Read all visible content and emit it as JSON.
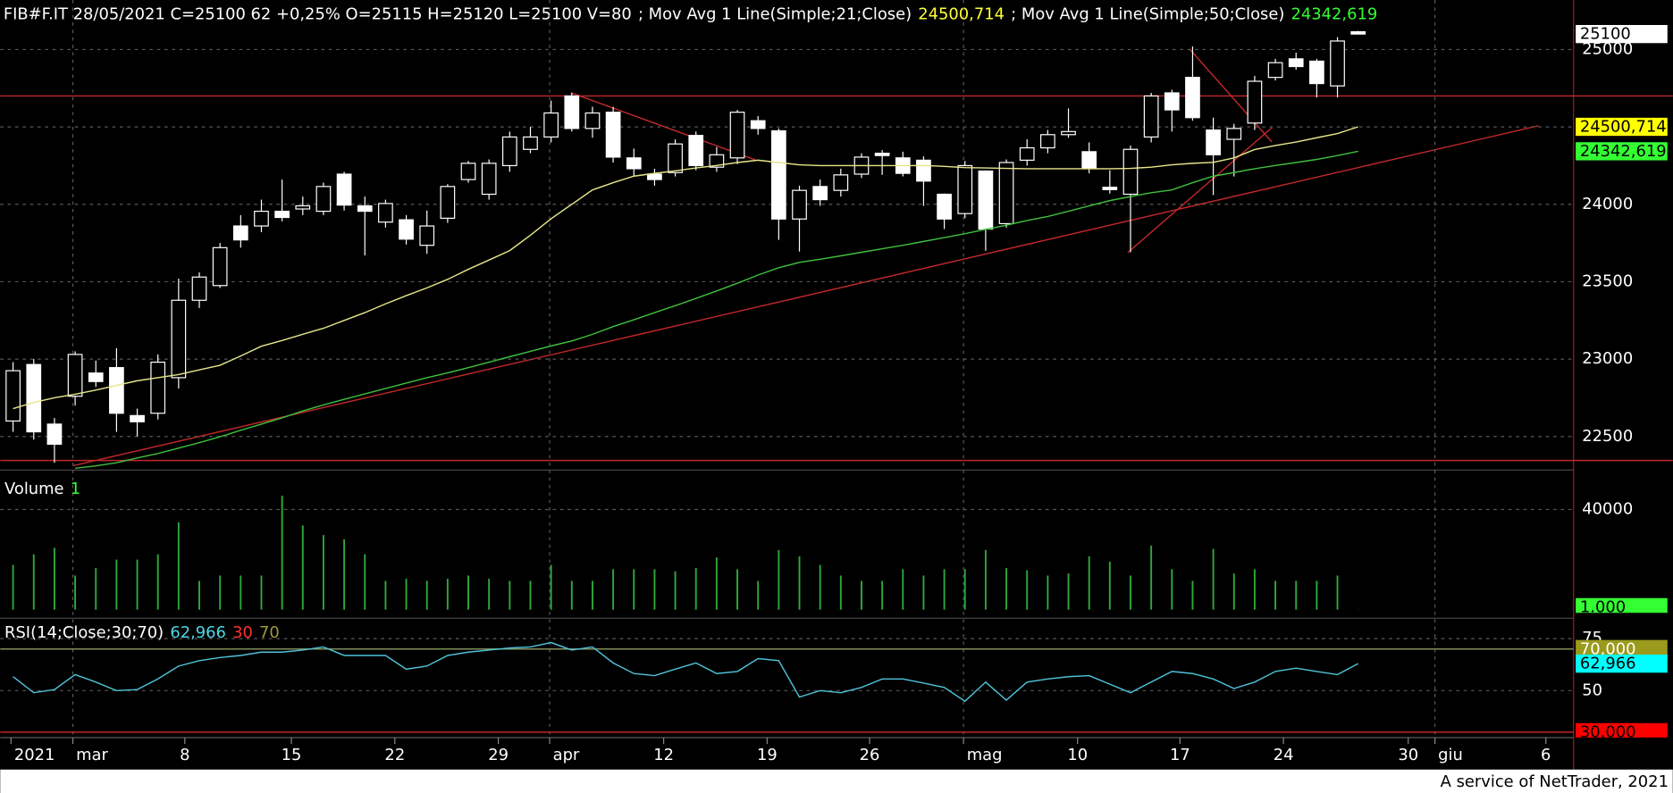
{
  "header": [
    {
      "text": "FIB#F.IT 28/05/2021 C=25100 62 +0,25% O=25115 H=25120 L=25100 V=80",
      "color": "#ffffff"
    },
    {
      "text": "; Mov Avg 1 Line(Simple;21;Close)",
      "color": "#ffffff"
    },
    {
      "text": "24500,714",
      "color": "#ffff33"
    },
    {
      "text": "; Mov Avg 1 Line(Simple;50;Close)",
      "color": "#ffffff"
    },
    {
      "text": "24342,619",
      "color": "#33ff33"
    }
  ],
  "footer": "A service of NetTrader, 2021",
  "chart_data": [
    {
      "type": "candlestick",
      "up_fill": "#000000",
      "down_fill": "#ffffff",
      "candle_stroke": "#ffffff",
      "grid": true,
      "open": [
        22600,
        22965,
        22580,
        22760,
        22910,
        22945,
        22635,
        22650,
        22880,
        23380,
        23475,
        23860,
        23860,
        23955,
        23970,
        23955,
        24195,
        23990,
        23885,
        23900,
        23735,
        23910,
        24160,
        24065,
        24250,
        24355,
        24435,
        24700,
        24490,
        24595,
        24300,
        24195,
        24205,
        24445,
        24240,
        24300,
        24540,
        24475,
        23905,
        24115,
        24090,
        24195,
        24330,
        24300,
        24285,
        24065,
        23940,
        24215,
        23875,
        24285,
        24365,
        24450,
        24340,
        24110,
        24065,
        24435,
        24720,
        24820,
        24480,
        24420,
        24525,
        24820,
        24940,
        24925,
        24765,
        25115
      ],
      "high": [
        22980,
        23000,
        22620,
        23050,
        22990,
        23070,
        22680,
        23030,
        23520,
        23560,
        23750,
        23930,
        24030,
        24160,
        24050,
        24140,
        24210,
        24050,
        24030,
        23930,
        23960,
        24130,
        24280,
        24290,
        24470,
        24500,
        24670,
        24720,
        24630,
        24630,
        24360,
        24230,
        24420,
        24470,
        24370,
        24610,
        24570,
        24490,
        24120,
        24160,
        24230,
        24330,
        24350,
        24340,
        24310,
        24070,
        24280,
        24220,
        24290,
        24420,
        24480,
        24620,
        24400,
        24220,
        24380,
        24720,
        24740,
        25020,
        24560,
        24520,
        24830,
        24940,
        24980,
        24940,
        25080,
        25120
      ],
      "low": [
        22530,
        22480,
        22330,
        22700,
        22820,
        22530,
        22500,
        22610,
        22810,
        23330,
        23460,
        23720,
        23820,
        23890,
        23930,
        23930,
        23960,
        23670,
        23850,
        23740,
        23680,
        23880,
        24140,
        24030,
        24210,
        24330,
        24400,
        24470,
        24430,
        24270,
        24180,
        24120,
        24180,
        24220,
        24210,
        24260,
        24450,
        23770,
        23695,
        23990,
        24050,
        24170,
        24190,
        24180,
        23990,
        23840,
        23910,
        23700,
        23850,
        24250,
        24330,
        24430,
        24200,
        24070,
        23690,
        24400,
        24470,
        24540,
        24060,
        24180,
        24480,
        24800,
        24870,
        24690,
        24690,
        25100
      ],
      "close": [
        22925,
        22530,
        22450,
        23030,
        22855,
        22650,
        22595,
        22980,
        23380,
        23530,
        23720,
        23770,
        23955,
        23915,
        23990,
        24115,
        23995,
        23955,
        24005,
        23775,
        23860,
        24115,
        24265,
        24265,
        24435,
        24435,
        24590,
        24490,
        24590,
        24305,
        24230,
        24160,
        24390,
        24250,
        24320,
        24595,
        24490,
        23905,
        24090,
        24030,
        24190,
        24305,
        24315,
        24200,
        24150,
        23905,
        24250,
        23840,
        24270,
        24365,
        24450,
        24470,
        24230,
        24095,
        24355,
        24700,
        24610,
        24560,
        24320,
        24490,
        24795,
        24915,
        24890,
        24780,
        25055,
        25100
      ],
      "series": [
        {
          "color": "#e6e68a",
          "values": [
            22680,
            22720,
            22750,
            22773,
            22800,
            22830,
            22860,
            22880,
            22900,
            22930,
            22960,
            23020,
            23083,
            23120,
            23160,
            23199,
            23250,
            23300,
            23357,
            23410,
            23460,
            23515,
            23580,
            23640,
            23701,
            23800,
            23907,
            24000,
            24093,
            24140,
            24182,
            24200,
            24216,
            24235,
            24251,
            24270,
            24285,
            24270,
            24255,
            24250,
            24250,
            24250,
            24250,
            24250,
            24251,
            24245,
            24237,
            24235,
            24232,
            24230,
            24230,
            24230,
            24230,
            24230,
            24232,
            24240,
            24255,
            24265,
            24271,
            24300,
            24354,
            24380,
            24402,
            24430,
            24457,
            24500.714
          ]
        },
        {
          "color": "#3fbf3f",
          "values": [
            null,
            null,
            null,
            22295,
            22310,
            22330,
            22361,
            22390,
            22425,
            22460,
            22498,
            22540,
            22580,
            22620,
            22665,
            22704,
            22740,
            22775,
            22810,
            22845,
            22880,
            22911,
            22945,
            22980,
            23015,
            23050,
            23085,
            23117,
            23160,
            23210,
            23254,
            23300,
            23345,
            23392,
            23440,
            23490,
            23543,
            23590,
            23625,
            23645,
            23667,
            23690,
            23713,
            23735,
            23760,
            23785,
            23810,
            23838,
            23865,
            23895,
            23921,
            23955,
            23990,
            24024,
            24050,
            24075,
            24093,
            24140,
            24182,
            24205,
            24230,
            24251,
            24270,
            24290,
            24315,
            24342.619
          ]
        }
      ],
      "ylim": [
        22290,
        25320
      ],
      "yticks": [
        22500,
        23000,
        23500,
        24000,
        24500,
        25000
      ],
      "hlines": [
        24700,
        22345
      ],
      "hline_color": "#c0282a",
      "xlim": [
        -0.62,
        75.41
      ],
      "xticks": [
        {
          "value": -0.1,
          "label": "2021"
        },
        {
          "value": 2.89,
          "label": "mar"
        },
        {
          "value": 8.3,
          "label": "8"
        },
        {
          "value": 13.45,
          "label": "15"
        },
        {
          "value": 18.45,
          "label": "22"
        },
        {
          "value": 23.45,
          "label": "29"
        },
        {
          "value": 25.93,
          "label": "apr"
        },
        {
          "value": 31.44,
          "label": "12"
        },
        {
          "value": 36.44,
          "label": "19"
        },
        {
          "value": 41.39,
          "label": "26"
        },
        {
          "value": 45.93,
          "label": "mag"
        },
        {
          "value": 51.44,
          "label": "10"
        },
        {
          "value": 56.39,
          "label": "17"
        },
        {
          "value": 61.39,
          "label": "24"
        },
        {
          "value": 67.42,
          "label": "30"
        },
        {
          "value": 68.71,
          "label": "giu"
        },
        {
          "value": 74.07,
          "label": "6"
        }
      ],
      "badges": [
        {
          "value": 25100,
          "label": "25100",
          "bg": "#ffffff",
          "fg": "#000000"
        },
        {
          "value": 24500.714,
          "label": "24500,714",
          "bg": "#ffff00",
          "fg": "#000000"
        },
        {
          "value": 24342.619,
          "label": "24342,619",
          "bg": "#33ff33",
          "fg": "#000000"
        }
      ]
    },
    {
      "type": "bar",
      "color": "#2fa83a",
      "legend": [
        {
          "text": "Volume",
          "color": "#ffffff"
        },
        {
          "text": "1",
          "color": "#33ff33"
        }
      ],
      "values": [
        17870,
        22130,
        24680,
        13620,
        16600,
        20000,
        20000,
        22130,
        34890,
        11490,
        13620,
        13620,
        13620,
        45530,
        33610,
        29790,
        28080,
        22130,
        11490,
        12340,
        11490,
        12340,
        13620,
        12340,
        11490,
        11490,
        17870,
        11490,
        11490,
        16170,
        16170,
        16170,
        15320,
        16600,
        20850,
        16170,
        11490,
        23830,
        21280,
        17870,
        13620,
        11490,
        11490,
        16170,
        13620,
        16170,
        16170,
        23830,
        16600,
        15740,
        13620,
        14470,
        21280,
        19150,
        13620,
        25530,
        16170,
        11490,
        24250,
        14470,
        16170,
        11490,
        11490,
        11490,
        13620,
        80
      ],
      "ylim": [
        0,
        53200
      ],
      "yticks": [
        40000
      ],
      "grid": true,
      "badges": [
        {
          "value": 1000,
          "label": "1.000",
          "bg": "#33ff33",
          "fg": "#000000"
        }
      ]
    },
    {
      "type": "line",
      "color": "#4fc3d9",
      "legend": [
        {
          "text": "RSI(14;Close;30;70)",
          "color": "#ffffff"
        },
        {
          "text": "62,966",
          "color": "#4fd9e6"
        },
        {
          "text": "30",
          "color": "#ff3030"
        },
        {
          "text": "70",
          "color": "#9a9a3a"
        }
      ],
      "values": [
        56.7,
        49.0,
        50.5,
        57.7,
        54.1,
        50.0,
        50.5,
        55.6,
        61.8,
        64.4,
        65.9,
        66.9,
        68.5,
        68.5,
        69.5,
        71.0,
        66.9,
        66.9,
        66.9,
        60.3,
        61.8,
        66.9,
        68.5,
        69.5,
        70.5,
        71.0,
        73.1,
        69.5,
        71.0,
        63.3,
        58.2,
        57.2,
        60.3,
        63.3,
        58.2,
        59.2,
        65.4,
        64.4,
        46.9,
        50.0,
        49.0,
        51.5,
        55.6,
        55.6,
        53.6,
        51.5,
        44.9,
        54.1,
        45.4,
        54.1,
        55.6,
        56.7,
        57.2,
        53.1,
        49.0,
        54.1,
        59.2,
        58.2,
        55.6,
        51.0,
        54.1,
        59.2,
        60.8,
        59.2,
        57.7,
        62.966
      ],
      "ylim": [
        27.4,
        83.8
      ],
      "yticks": [
        50,
        75
      ],
      "grid": true,
      "hlines": [
        30,
        70
      ],
      "hline_colors": [
        "#c0282a",
        "#7f8f5a"
      ],
      "badges": [
        {
          "value": 70,
          "label": "70,000",
          "bg": "#9a9a1c",
          "fg": "#ffffff"
        },
        {
          "value": 62.966,
          "label": "62,966",
          "bg": "#00ffff",
          "fg": "#000000"
        },
        {
          "value": 30,
          "label": "30,000",
          "bg": "#ff0000",
          "fg": "#000000"
        }
      ]
    }
  ]
}
